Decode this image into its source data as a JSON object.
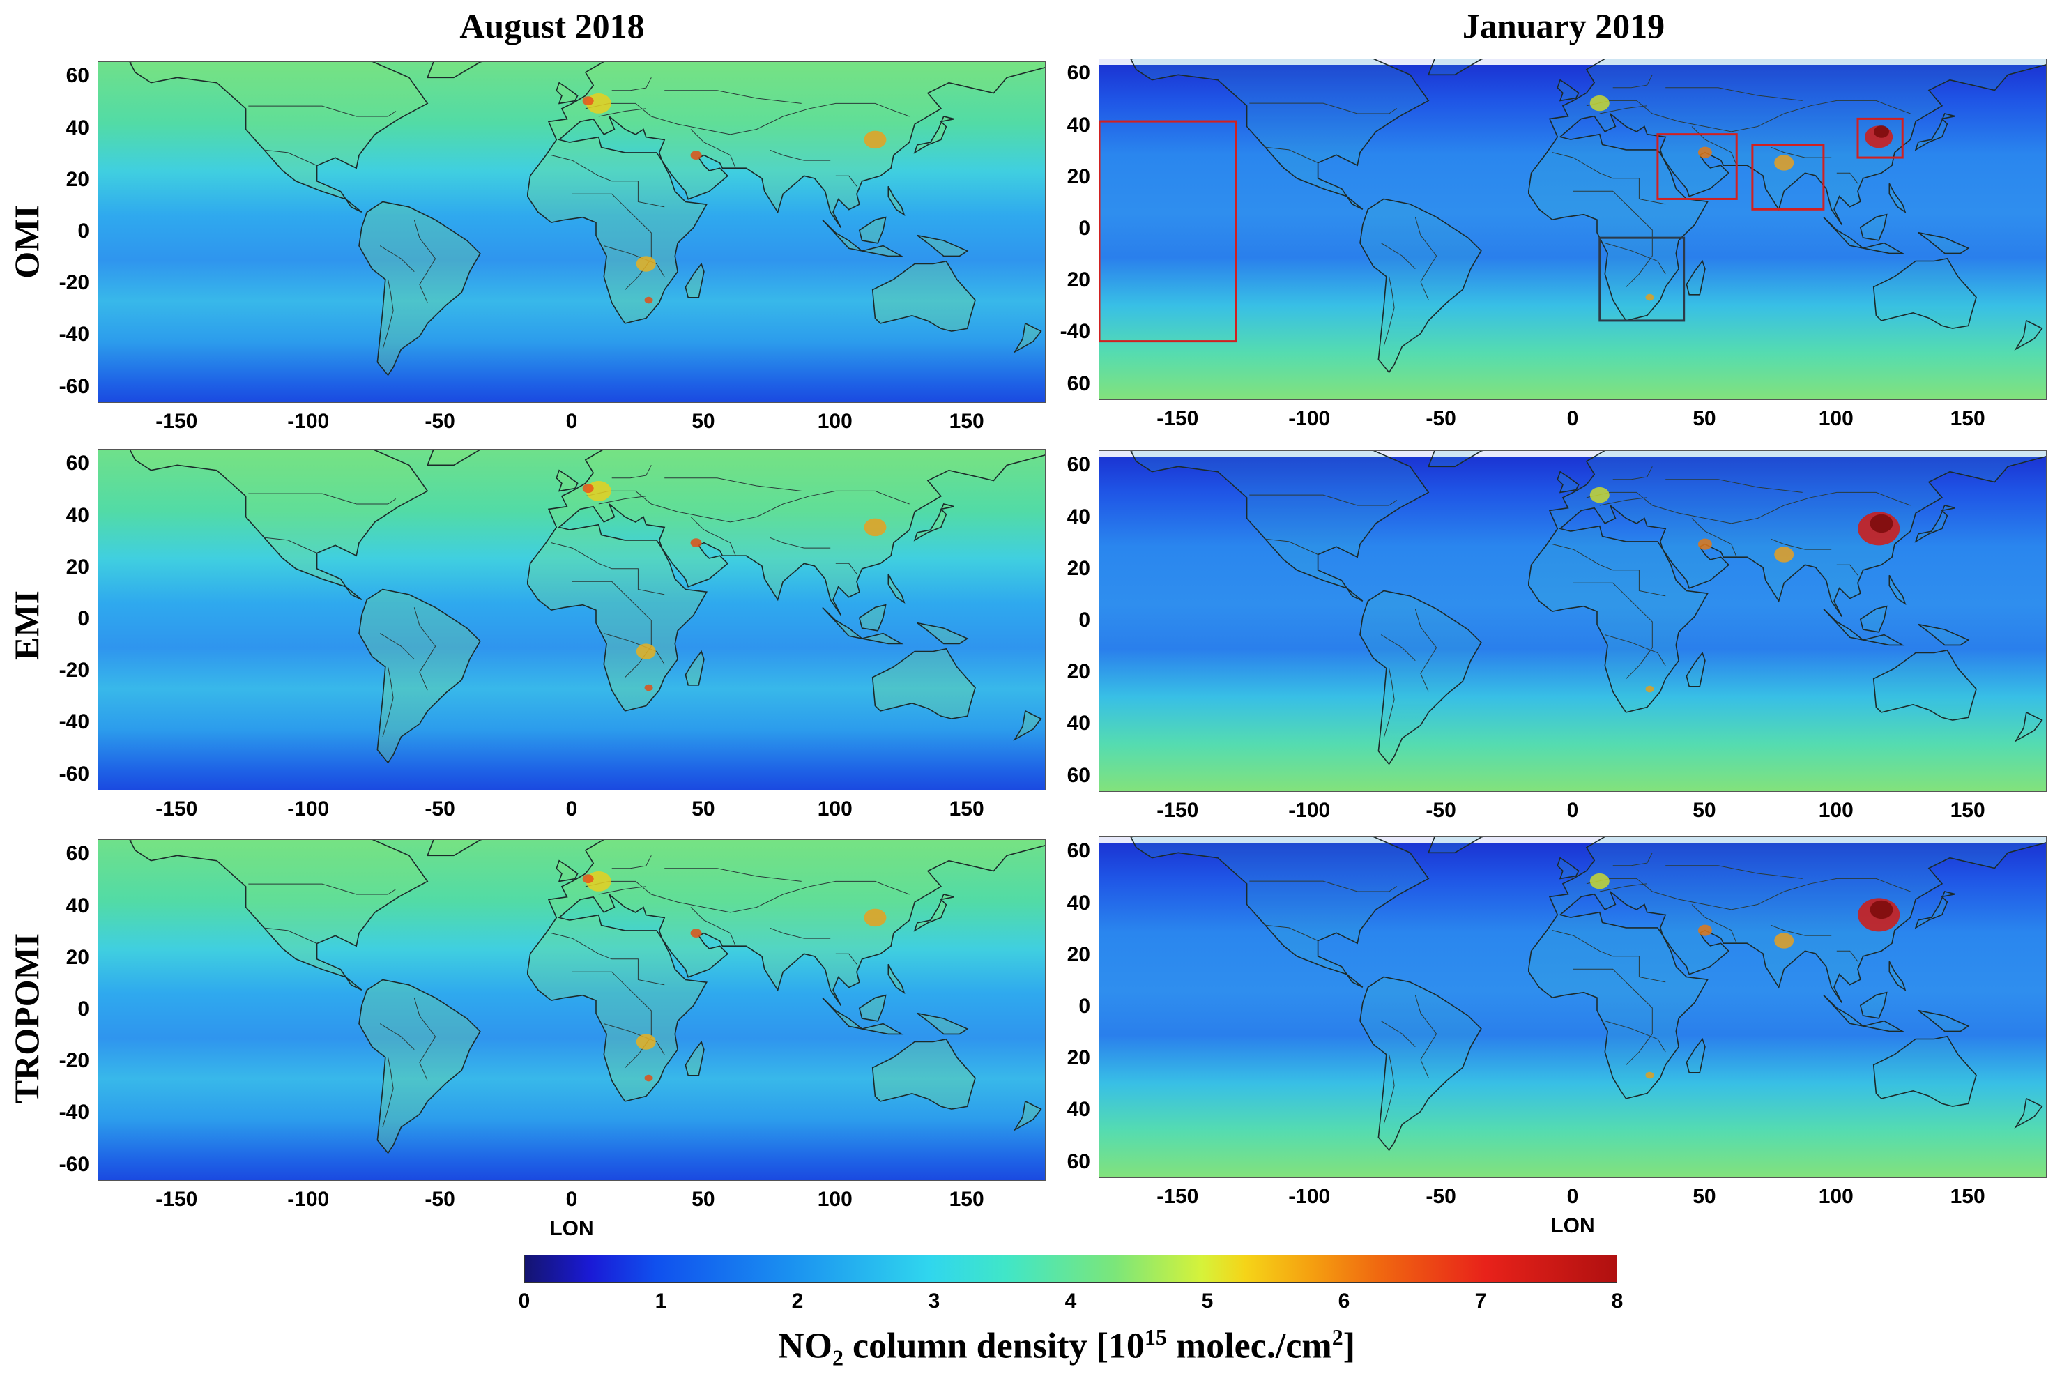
{
  "figure": {
    "column_titles": [
      "August 2018",
      "January 2019"
    ],
    "row_labels": [
      "OMI",
      "EMI",
      "TROPOMI"
    ],
    "x_axis": {
      "ticks": [
        "-150",
        "-100",
        "-50",
        "0",
        "50",
        "100",
        "150"
      ],
      "label": "LON"
    },
    "y_axis": {
      "ticks_signed": [
        "60",
        "40",
        "20",
        "0",
        "-20",
        "-40",
        "-60"
      ],
      "ticks_jan_omi": [
        "60",
        "40",
        "20",
        "0",
        "20",
        "-40",
        "60"
      ],
      "ticks_jan_emi": [
        "60",
        "40",
        "20",
        "0",
        "20",
        "40",
        "60"
      ],
      "ticks_jan_tropomi": [
        "60",
        "40",
        "20",
        "0",
        "20",
        "40",
        "60"
      ]
    },
    "colorbar": {
      "ticks": [
        "0",
        "1",
        "2",
        "3",
        "4",
        "5",
        "6",
        "7",
        "8"
      ],
      "title_prefix": "NO",
      "title_sub": "2",
      "title_mid": " column density [10",
      "title_sup": "15",
      "title_mid2": " molec./cm",
      "title_sup2": "2",
      "title_end": "]",
      "range": [
        0,
        8
      ],
      "colormap": "jet"
    },
    "colors": {
      "deep_blue": "#1a3fe0",
      "mid_blue": "#2f8cf0",
      "cyan": "#3fd0ea",
      "green": "#7ee07a",
      "hotspot_red": "#d41a12",
      "roi_red": "#d12020",
      "roi_dark": "#2c3a48"
    },
    "regions_of_interest": [
      "Pacific reference region",
      "Middle East",
      "India",
      "Eastern China",
      "Southern Africa"
    ]
  }
}
